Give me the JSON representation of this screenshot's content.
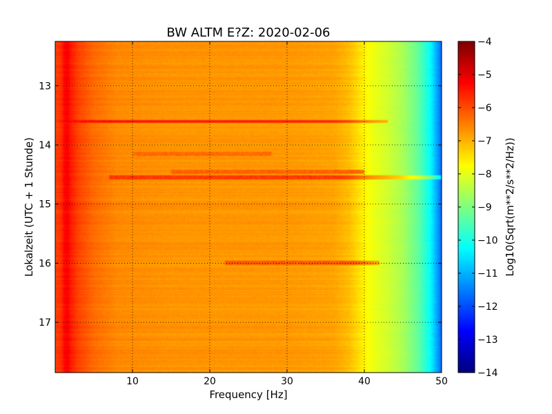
{
  "chart_data": {
    "type": "heatmap",
    "title": "BW ALTM E?Z: 2020-02-06",
    "xlabel": "Frequency [Hz]",
    "ylabel": "Lokalzeit (UTC + 1 Stunde)",
    "xlim": [
      0,
      50
    ],
    "ylim": [
      12.25,
      17.85
    ],
    "y_inverted": true,
    "x_ticks": [
      10,
      20,
      30,
      40,
      50
    ],
    "y_ticks": [
      13,
      14,
      15,
      16,
      17
    ],
    "grid": true,
    "grid_style": "dotted",
    "colorbar": {
      "label": "Log10(Sqrt(m**2/s**2/Hz))",
      "range": [
        -14,
        -4
      ],
      "ticks": [
        -4,
        -5,
        -6,
        -7,
        -8,
        -9,
        -10,
        -11,
        -12,
        -13,
        -14
      ],
      "colormap": "jet"
    },
    "spectrum_profile": {
      "frequency_hz": [
        0,
        0.8,
        1.2,
        1.6,
        2.0,
        3,
        5,
        8,
        15,
        30,
        36,
        38,
        39.5,
        41,
        43,
        45,
        47,
        48.5,
        49.5,
        50
      ],
      "log10_amplitude": [
        -5.9,
        -5.7,
        -5.3,
        -5.2,
        -5.5,
        -5.9,
        -6.3,
        -6.6,
        -6.7,
        -6.75,
        -6.85,
        -7.1,
        -7.5,
        -7.9,
        -8.2,
        -8.6,
        -9.3,
        -10.2,
        -11.2,
        -11.8
      ]
    },
    "band_features": [
      {
        "time": 13.6,
        "freq_range": [
          0.5,
          43
        ],
        "log10_amplitude": -5.4
      },
      {
        "time": 14.55,
        "freq_range": [
          7,
          50
        ],
        "log10_amplitude": -5.8
      },
      {
        "time": 14.45,
        "freq_range": [
          15,
          40
        ],
        "log10_amplitude": -6.2
      },
      {
        "time": 14.15,
        "freq_range": [
          10,
          28
        ],
        "log10_amplitude": -6.3
      },
      {
        "time": 16.0,
        "freq_range": [
          22,
          42
        ],
        "log10_amplitude": -6.1
      }
    ]
  }
}
